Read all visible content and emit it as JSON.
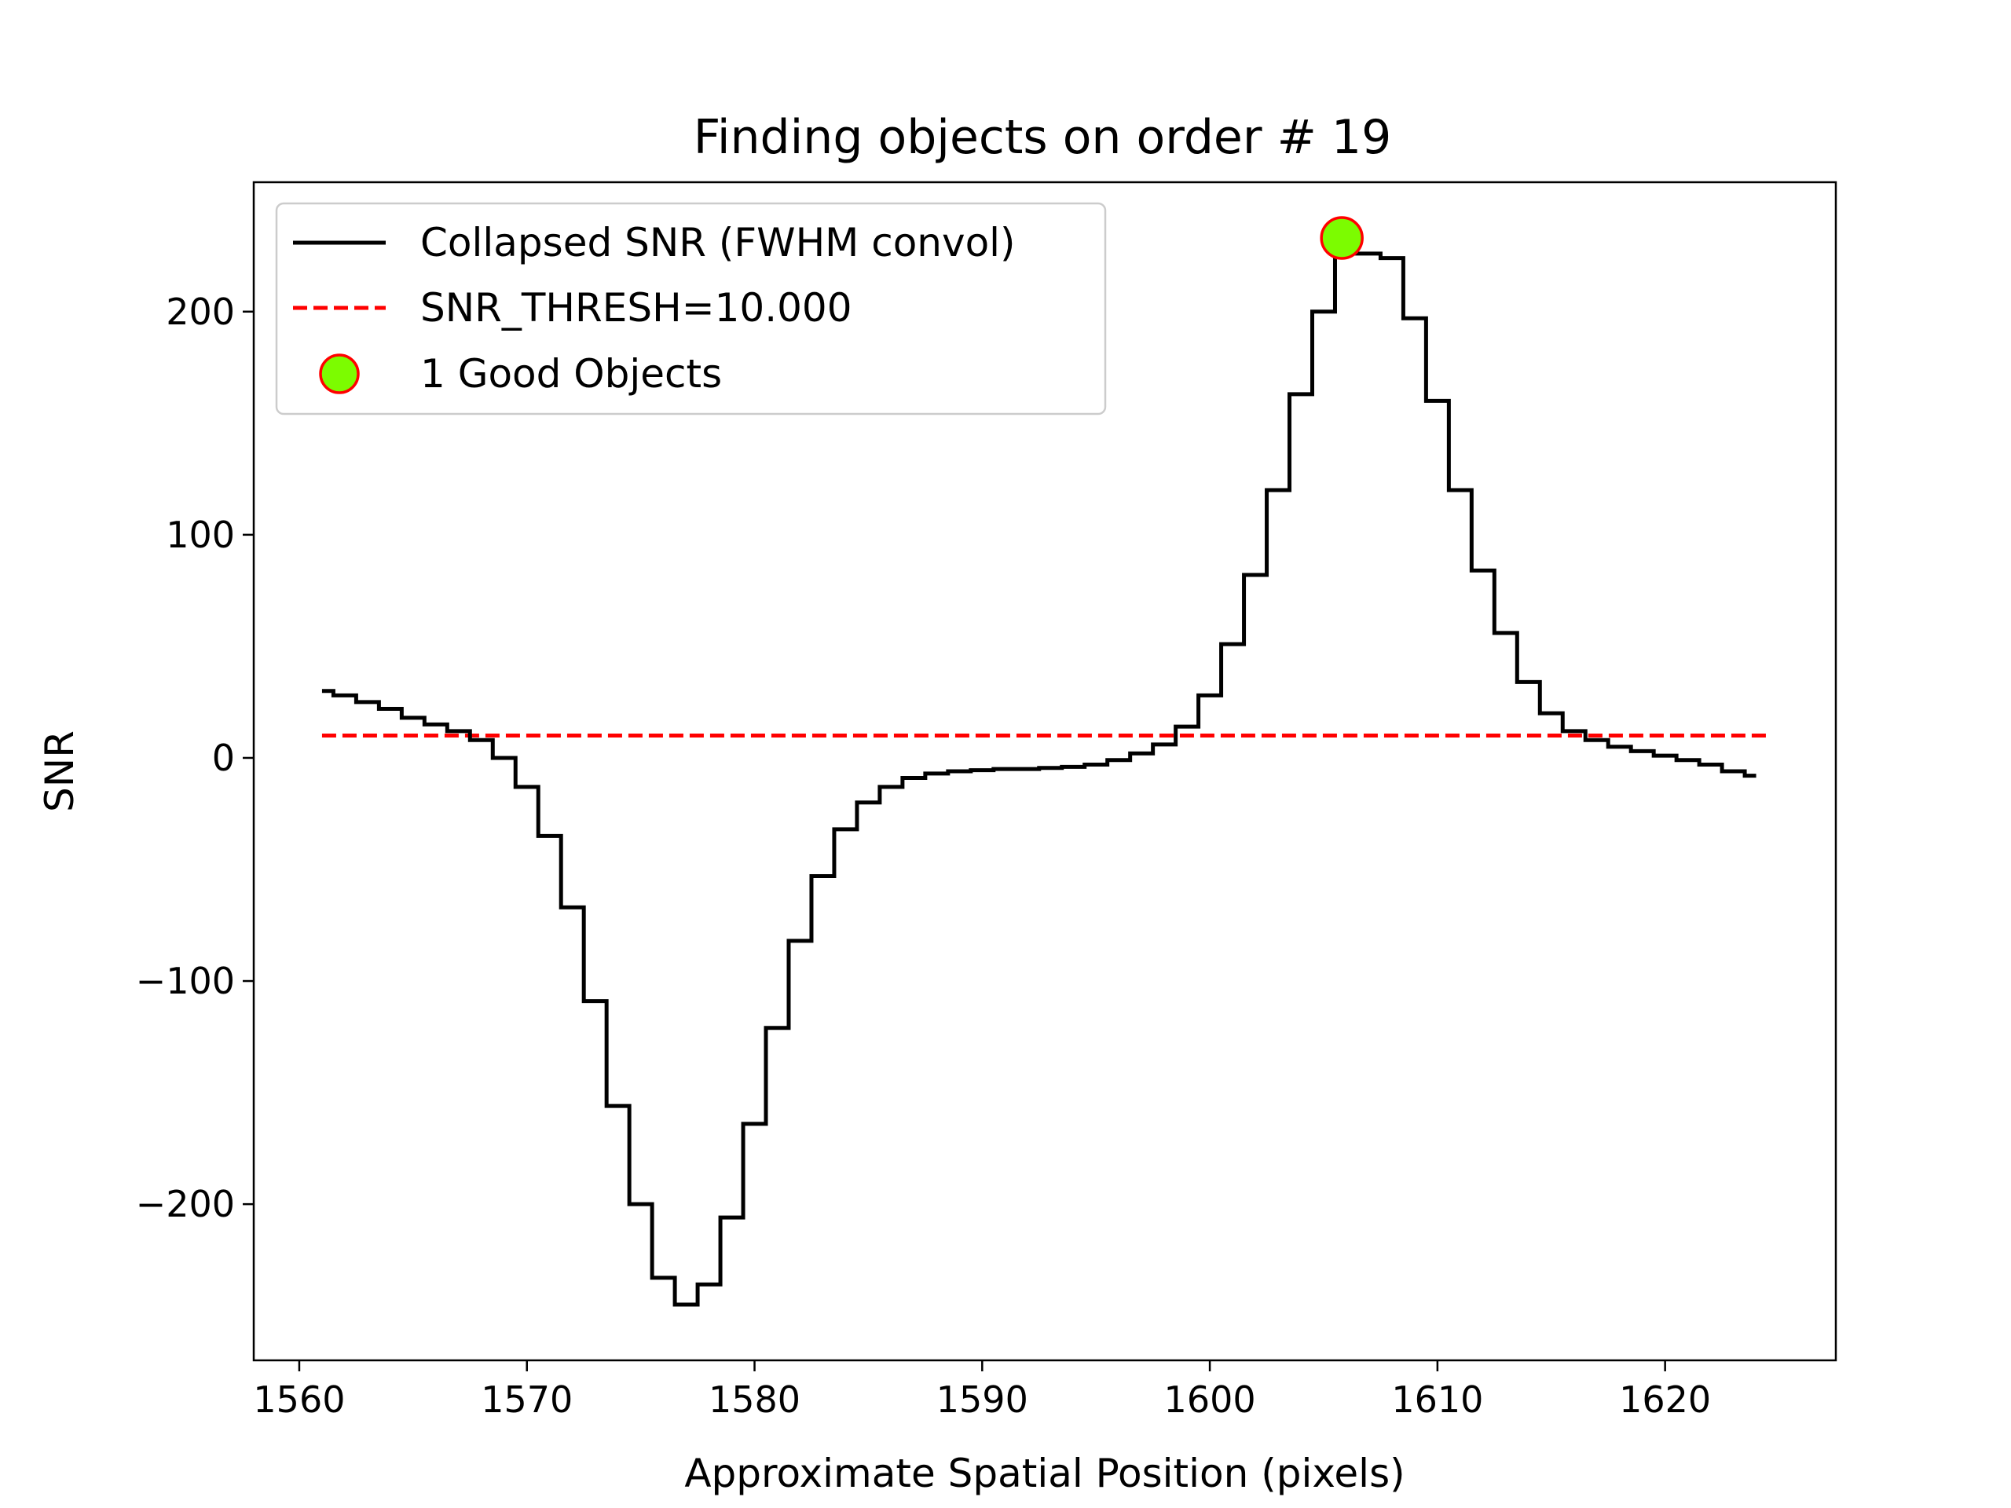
{
  "chart_data": {
    "type": "line",
    "title": "Finding objects on order # 19",
    "xlabel": "Approximate Spatial Position (pixels)",
    "ylabel": "SNR",
    "xlim": [
      1558,
      1627.5
    ],
    "ylim": [
      -270,
      258
    ],
    "xticks": [
      1560,
      1570,
      1580,
      1590,
      1600,
      1610,
      1620
    ],
    "yticks": [
      -200,
      -100,
      0,
      100,
      200
    ],
    "ytick_labels": [
      "−200",
      "−100",
      "0",
      "100",
      "200"
    ],
    "legend_position": "upper-left",
    "grid": false,
    "series": [
      {
        "name": "Collapsed SNR (FWHM convol)",
        "style": "steps-mid",
        "color": "#000000",
        "x": [
          1561,
          1562,
          1563,
          1564,
          1565,
          1566,
          1567,
          1568,
          1569,
          1570,
          1571,
          1572,
          1573,
          1574,
          1575,
          1576,
          1577,
          1578,
          1579,
          1580,
          1581,
          1582,
          1583,
          1584,
          1585,
          1586,
          1587,
          1588,
          1589,
          1590,
          1591,
          1592,
          1593,
          1594,
          1595,
          1596,
          1597,
          1598,
          1599,
          1600,
          1601,
          1602,
          1603,
          1604,
          1605,
          1606,
          1607,
          1608,
          1609,
          1610,
          1611,
          1612,
          1613,
          1614,
          1615,
          1616,
          1617,
          1618,
          1619,
          1620,
          1621,
          1622,
          1623,
          1624
        ],
        "y": [
          30,
          28,
          25,
          22,
          18,
          15,
          12,
          8,
          0,
          -13,
          -35,
          -67,
          -109,
          -156,
          -200,
          -233,
          -245,
          -236,
          -206,
          -164,
          -121,
          -82,
          -53,
          -32,
          -20,
          -13,
          -9,
          -7,
          -6,
          -5.5,
          -5,
          -5,
          -4.5,
          -4,
          -3,
          -1,
          2,
          6,
          14,
          28,
          51,
          82,
          120,
          163,
          200,
          226,
          226,
          224,
          197,
          160,
          120,
          84,
          56,
          34,
          20,
          12,
          8,
          5,
          3,
          1,
          -1,
          -3,
          -6,
          -8
        ]
      },
      {
        "name": "SNR_THRESH=10.000",
        "style": "dashed",
        "color": "#ff0000",
        "x": [
          1561,
          1624.5
        ],
        "y": [
          10,
          10
        ]
      }
    ],
    "markers": {
      "name": "1 Good Objects",
      "face_color": "#7cfc00",
      "edge_color": "#ff0000",
      "points": [
        {
          "x": 1605.8,
          "y": 233
        }
      ]
    }
  }
}
